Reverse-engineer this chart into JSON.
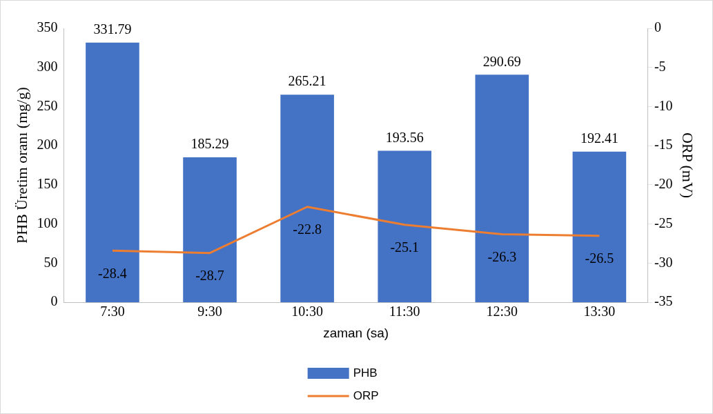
{
  "chart_data": {
    "type": "bar",
    "categories": [
      "7:30",
      "9:30",
      "10:30",
      "11:30",
      "12:30",
      "13:30"
    ],
    "series": [
      {
        "name": "PHB",
        "color": "#4472c4",
        "values": [
          331.79,
          185.29,
          265.21,
          193.56,
          290.69,
          192.41
        ]
      },
      {
        "name": "ORP",
        "type": "line",
        "axis": "y2",
        "color": "#ed7d31",
        "values": [
          -28.4,
          -28.7,
          -22.8,
          -25.1,
          -26.3,
          -26.5
        ]
      }
    ],
    "xlabel": "zaman (sa)",
    "ylabel": "PHB Üretim oranı (mg/g)",
    "y2label": "ORP (mV)",
    "ylim": [
      0,
      350
    ],
    "yticks": [
      0,
      50,
      100,
      150,
      200,
      250,
      300,
      350
    ],
    "y2lim": [
      -35,
      0
    ],
    "y2ticks": [
      -35,
      -30,
      -25,
      -20,
      -15,
      -10,
      -5,
      0
    ],
    "data_labels": true,
    "legend": "bottom",
    "marker": "none",
    "grid": false
  }
}
